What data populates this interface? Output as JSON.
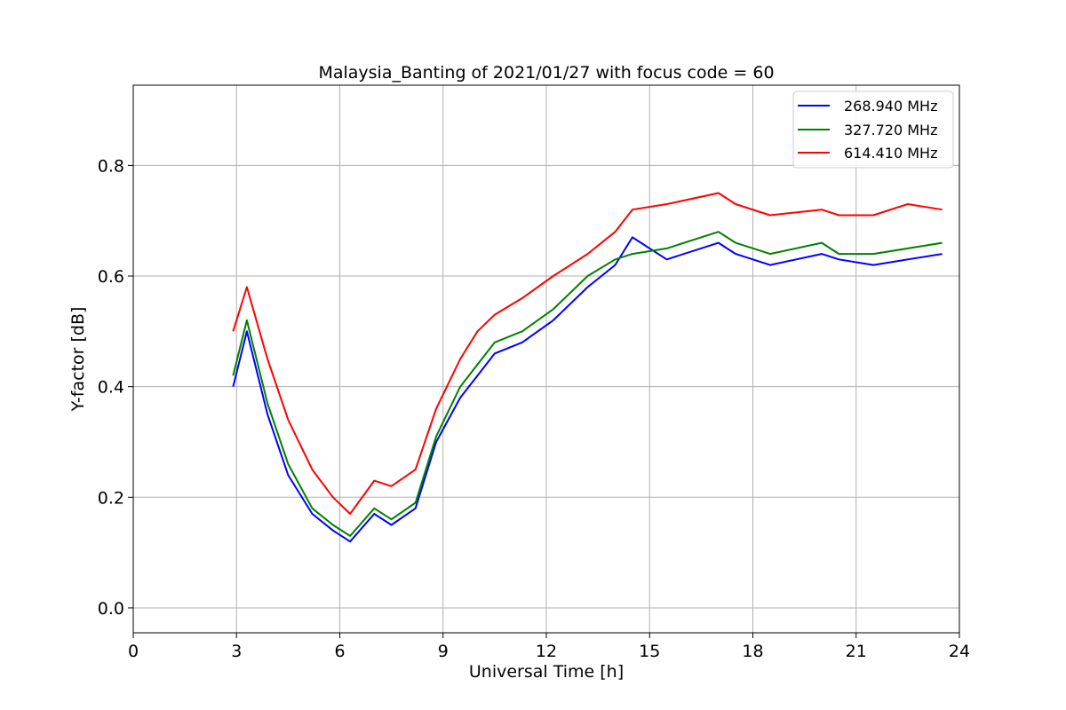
{
  "chart_data": {
    "type": "line",
    "title": "Malaysia_Banting of 2021/01/27 with focus code = 60",
    "xlabel": "Universal Time [h]",
    "ylabel": "Y-factor [dB]",
    "xlim": [
      0,
      24
    ],
    "ylim": [
      -0.045,
      0.945
    ],
    "xticks": [
      0,
      3,
      6,
      9,
      12,
      15,
      18,
      21,
      24
    ],
    "xtick_labels": [
      "0",
      "3",
      "6",
      "9",
      "12",
      "15",
      "18",
      "21",
      "24"
    ],
    "yticks": [
      0.0,
      0.2,
      0.4,
      0.6,
      0.8
    ],
    "ytick_labels": [
      "0.0",
      "0.2",
      "0.4",
      "0.6",
      "0.8"
    ],
    "grid": true,
    "legend_position": "top-right",
    "series": [
      {
        "name": "268.940 MHz",
        "color": "#0000ff",
        "x": [
          2.9,
          3.3,
          3.9,
          4.5,
          5.2,
          5.8,
          6.3,
          7.0,
          7.5,
          8.2,
          8.8,
          9.5,
          10.0,
          10.5,
          11.3,
          12.2,
          13.2,
          14.0,
          14.5,
          15.5,
          17.0,
          17.5,
          18.5,
          20.0,
          20.5,
          21.5,
          22.5,
          23.5
        ],
        "y": [
          0.4,
          0.5,
          0.35,
          0.24,
          0.17,
          0.14,
          0.12,
          0.17,
          0.15,
          0.18,
          0.3,
          0.38,
          0.42,
          0.46,
          0.48,
          0.52,
          0.58,
          0.62,
          0.67,
          0.63,
          0.66,
          0.64,
          0.62,
          0.64,
          0.63,
          0.62,
          0.63,
          0.64
        ]
      },
      {
        "name": "327.720 MHz",
        "color": "#008000",
        "x": [
          2.9,
          3.3,
          3.9,
          4.5,
          5.2,
          5.8,
          6.3,
          7.0,
          7.5,
          8.2,
          8.8,
          9.5,
          10.0,
          10.5,
          11.3,
          12.2,
          13.2,
          14.0,
          14.5,
          15.5,
          17.0,
          17.5,
          18.5,
          20.0,
          20.5,
          21.5,
          22.5,
          23.5
        ],
        "y": [
          0.42,
          0.52,
          0.37,
          0.26,
          0.18,
          0.15,
          0.13,
          0.18,
          0.16,
          0.19,
          0.31,
          0.4,
          0.44,
          0.48,
          0.5,
          0.54,
          0.6,
          0.63,
          0.64,
          0.65,
          0.68,
          0.66,
          0.64,
          0.66,
          0.64,
          0.64,
          0.65,
          0.66
        ]
      },
      {
        "name": "614.410 MHz",
        "color": "#ff0000",
        "x": [
          2.9,
          3.3,
          3.9,
          4.5,
          5.2,
          5.8,
          6.3,
          7.0,
          7.5,
          8.2,
          8.8,
          9.5,
          10.0,
          10.5,
          11.3,
          12.2,
          13.2,
          14.0,
          14.5,
          15.5,
          17.0,
          17.5,
          18.5,
          20.0,
          20.5,
          21.5,
          22.5,
          23.5
        ],
        "y": [
          0.5,
          0.58,
          0.45,
          0.34,
          0.25,
          0.2,
          0.17,
          0.23,
          0.22,
          0.25,
          0.36,
          0.45,
          0.5,
          0.53,
          0.56,
          0.6,
          0.64,
          0.68,
          0.72,
          0.73,
          0.75,
          0.73,
          0.71,
          0.72,
          0.71,
          0.71,
          0.73,
          0.72
        ]
      }
    ]
  }
}
